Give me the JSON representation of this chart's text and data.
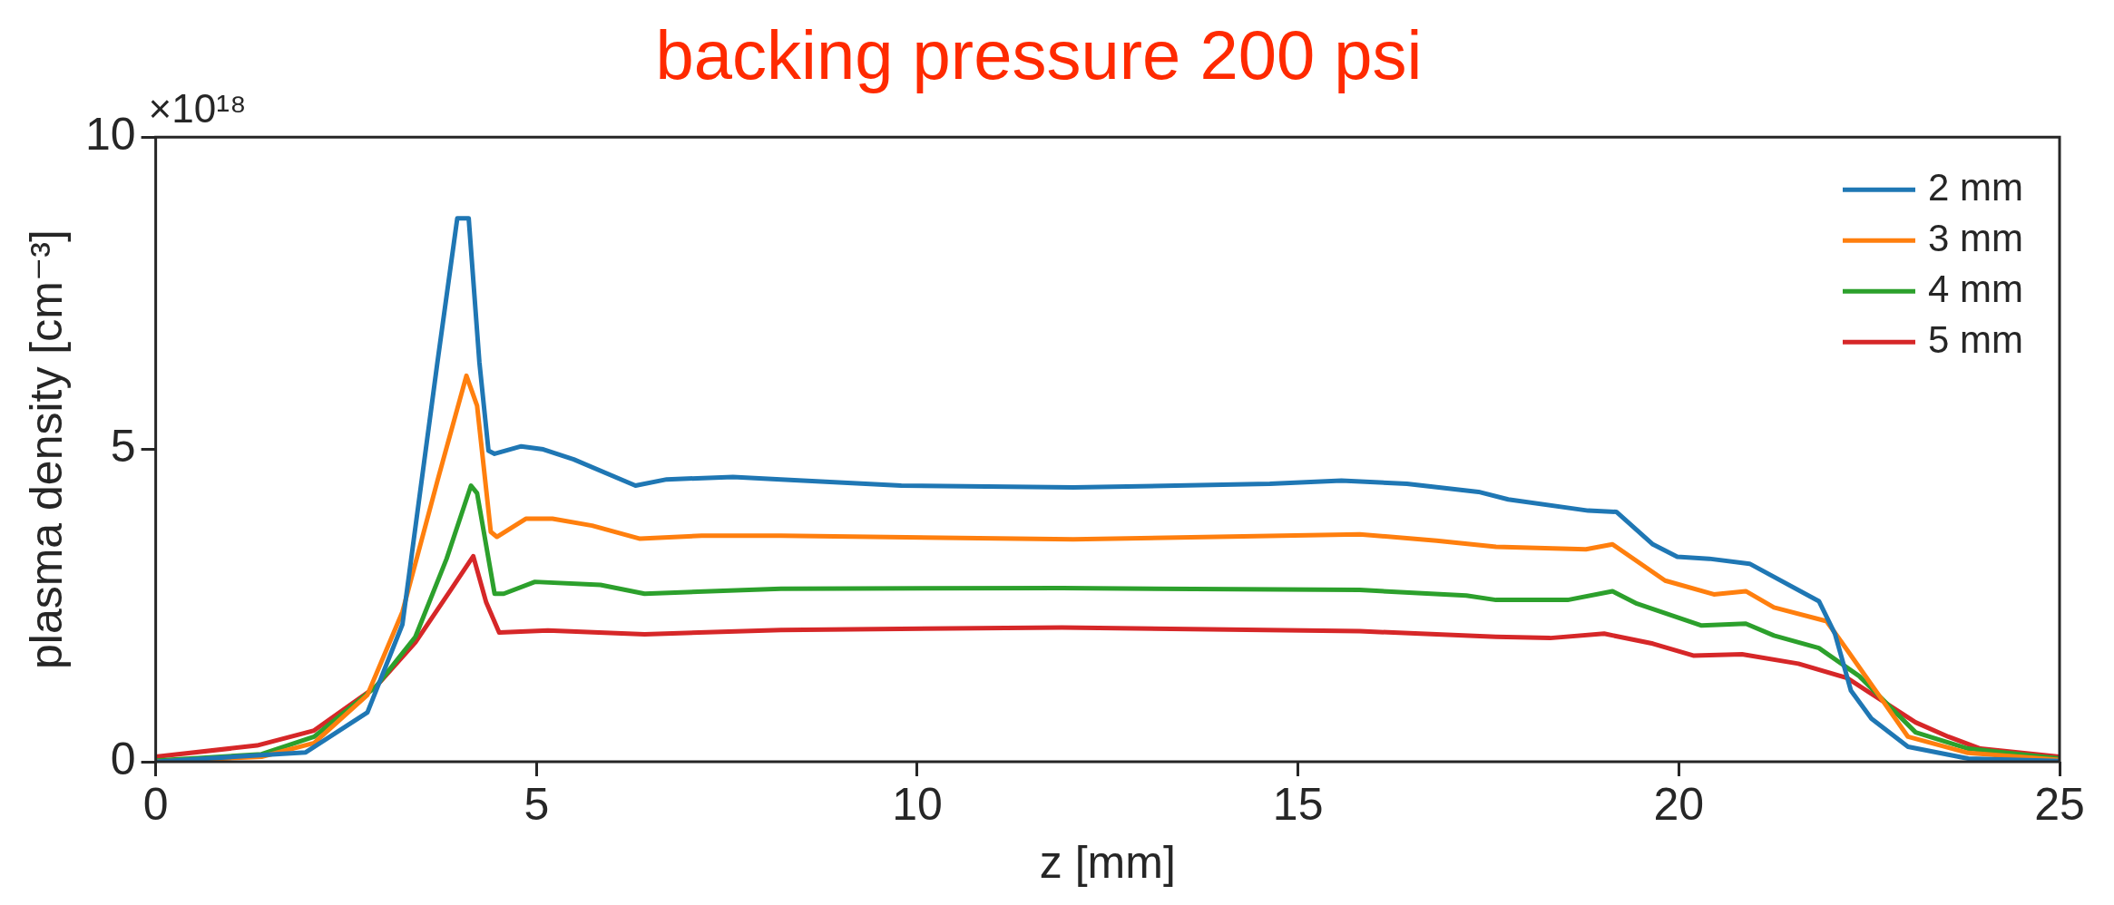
{
  "chart_data": {
    "type": "line",
    "title": "backing pressure 200 psi",
    "xlabel": "z [mm]",
    "ylabel": "plasma density [cm⁻³]",
    "annotations": [
      "×10¹⁸"
    ],
    "xlim": [
      0,
      25
    ],
    "xticks": [
      0,
      5,
      10,
      15,
      20,
      25
    ],
    "ylim": [
      0,
      10
    ],
    "yticks": [
      0,
      5,
      10
    ],
    "grid": false,
    "legend": "top right",
    "marker": "none",
    "line_style": "solid",
    "series": [
      {
        "name": "2 mm",
        "color": "#1f77b4",
        "x": [
          0,
          1.97,
          2.78,
          3.24,
          3.7,
          3.96,
          4.11,
          4.25,
          4.37,
          4.45,
          4.8,
          5.09,
          5.49,
          6.3,
          6.71,
          7.58,
          8.21,
          9.79,
          12.05,
          14.63,
          15.57,
          16.43,
          17.37,
          17.76,
          18.81,
          19.18,
          19.66,
          19.98,
          20.4,
          20.93,
          21.84,
          22.05,
          22.26,
          22.53,
          23.01,
          23.8,
          25
        ],
        "values": [
          0,
          0.15,
          0.79,
          2.2,
          6.4,
          8.7,
          8.7,
          6.4,
          4.98,
          4.93,
          5.05,
          5,
          4.84,
          4.42,
          4.52,
          4.56,
          4.52,
          4.42,
          4.39,
          4.45,
          4.5,
          4.45,
          4.32,
          4.2,
          4.02,
          4,
          3.48,
          3.28,
          3.25,
          3.17,
          2.57,
          2.05,
          1.14,
          0.69,
          0.24,
          0.05,
          0.01
        ]
      },
      {
        "name": "3 mm",
        "color": "#ff7f0e",
        "x": [
          0,
          1.39,
          2.08,
          2.78,
          3.24,
          3.7,
          4.08,
          4.22,
          4.4,
          4.48,
          4.86,
          5.21,
          5.73,
          6.36,
          7.17,
          8.21,
          12.05,
          15.81,
          16.82,
          17.6,
          18.78,
          19.13,
          19.82,
          20.46,
          20.88,
          21.25,
          21.94,
          22.21,
          23.01,
          23.8,
          25
        ],
        "values": [
          0,
          0.08,
          0.3,
          1.07,
          2.4,
          4.5,
          6.18,
          5.7,
          3.68,
          3.6,
          3.89,
          3.89,
          3.78,
          3.57,
          3.62,
          3.62,
          3.56,
          3.64,
          3.54,
          3.44,
          3.4,
          3.48,
          2.9,
          2.68,
          2.73,
          2.47,
          2.25,
          1.79,
          0.4,
          0.14,
          0.03
        ]
      },
      {
        "name": "4 mm",
        "color": "#2ca02c",
        "x": [
          0,
          1.39,
          2.08,
          2.89,
          3.41,
          3.82,
          4.14,
          4.22,
          4.45,
          4.57,
          4.98,
          5.84,
          6.42,
          8.21,
          11.9,
          15.81,
          17.21,
          17.6,
          18.54,
          19.13,
          19.45,
          20.3,
          20.88,
          21.25,
          21.84,
          22.37,
          23.11,
          23.8,
          25
        ],
        "values": [
          0.02,
          0.12,
          0.4,
          1.2,
          2,
          3.25,
          4.42,
          4.3,
          2.69,
          2.69,
          2.88,
          2.83,
          2.69,
          2.77,
          2.78,
          2.75,
          2.66,
          2.59,
          2.59,
          2.73,
          2.53,
          2.18,
          2.21,
          2.02,
          1.82,
          1.37,
          0.47,
          0.21,
          0.05
        ]
      },
      {
        "name": "5 mm",
        "color": "#d62728",
        "x": [
          0,
          1.33,
          2.08,
          2.89,
          3.41,
          3.88,
          4.17,
          4.34,
          4.51,
          5.15,
          6.42,
          8.21,
          11.9,
          15.81,
          17.6,
          18.31,
          19.02,
          19.66,
          20.19,
          20.83,
          21.57,
          22.21,
          23.11,
          23.54,
          23.96,
          25
        ],
        "values": [
          0.08,
          0.26,
          0.5,
          1.2,
          1.91,
          2.76,
          3.29,
          2.55,
          2.07,
          2.1,
          2.04,
          2.11,
          2.15,
          2.09,
          2,
          1.98,
          2.05,
          1.89,
          1.7,
          1.72,
          1.57,
          1.34,
          0.63,
          0.4,
          0.21,
          0.08
        ]
      }
    ]
  }
}
